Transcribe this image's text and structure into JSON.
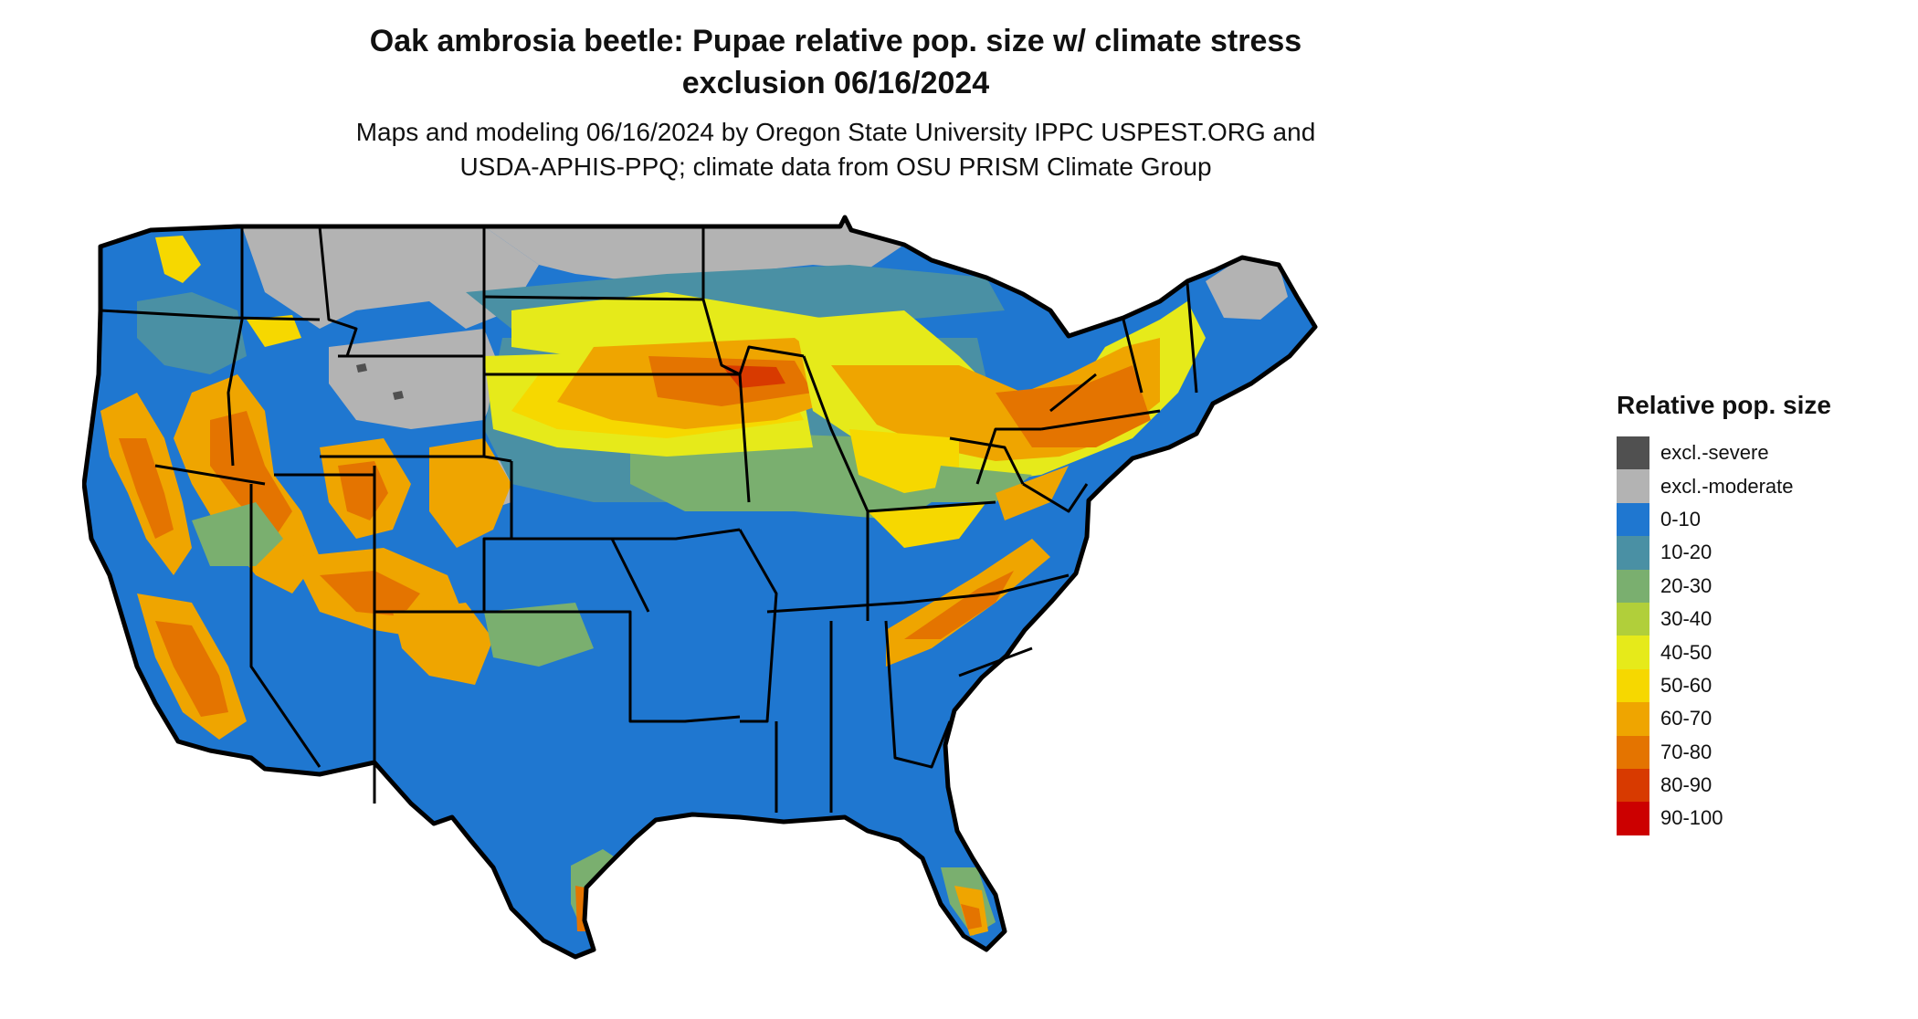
{
  "title": {
    "line1": "Oak ambrosia beetle: Pupae relative pop. size w/ climate stress",
    "line2": "exclusion 06/16/2024"
  },
  "subtitle": {
    "line1": "Maps and modeling 06/16/2024 by Oregon State University IPPC USPEST.ORG and",
    "line2": "USDA-APHIS-PPQ; climate data from OSU PRISM Climate Group"
  },
  "legend": {
    "title": "Relative pop. size",
    "items": [
      {
        "label": "excl.-severe",
        "color": "#505050"
      },
      {
        "label": "excl.-moderate",
        "color": "#b3b3b3"
      },
      {
        "label": "0-10",
        "color": "#1f77d0"
      },
      {
        "label": "10-20",
        "color": "#4a90a4"
      },
      {
        "label": "20-30",
        "color": "#7aaf6f"
      },
      {
        "label": "30-40",
        "color": "#b1cf3a"
      },
      {
        "label": "40-50",
        "color": "#e6ea1a"
      },
      {
        "label": "50-60",
        "color": "#f6d800"
      },
      {
        "label": "60-70",
        "color": "#efa500"
      },
      {
        "label": "70-80",
        "color": "#e47400"
      },
      {
        "label": "80-90",
        "color": "#d83a00"
      },
      {
        "label": "90-100",
        "color": "#cc0000"
      }
    ]
  },
  "map": {
    "region": "contiguous United States",
    "colors": {
      "background": "#1f77d0",
      "border": "#000000"
    }
  }
}
